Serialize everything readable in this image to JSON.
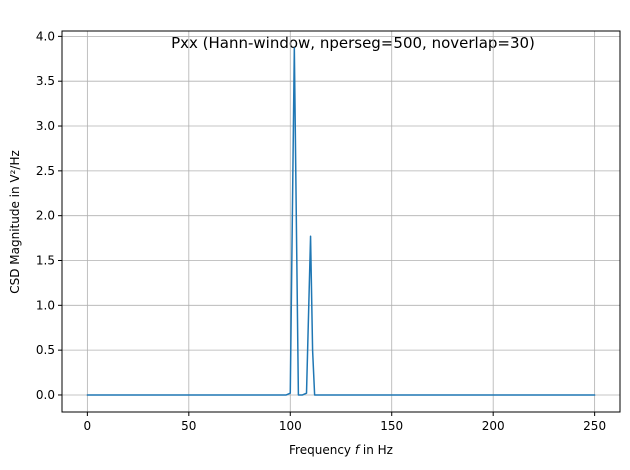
{
  "chart_data": {
    "type": "line",
    "title": "Pxx (Hann-window, nperseg=500, noverlap=30)",
    "xlabel_prefix": "Frequency ",
    "xlabel_var": "f",
    "xlabel_suffix": " in Hz",
    "ylabel": "CSD Magnitude in V²/Hz",
    "xlim": [
      -12.5,
      262.5
    ],
    "ylim": [
      -0.19,
      4.06
    ],
    "xticks": [
      0,
      50,
      100,
      150,
      200,
      250
    ],
    "xtick_labels": [
      "0",
      "50",
      "100",
      "150",
      "200",
      "250"
    ],
    "yticks": [
      0.0,
      0.5,
      1.0,
      1.5,
      2.0,
      2.5,
      3.0,
      3.5,
      4.0
    ],
    "ytick_labels": [
      "0.0",
      "0.5",
      "1.0",
      "1.5",
      "2.0",
      "2.5",
      "3.0",
      "3.5",
      "4.0"
    ],
    "grid": true,
    "series": [
      {
        "color": "#1f77b4",
        "x": [
          0,
          50,
          98,
          100,
          102,
          104,
          106,
          108,
          110,
          111,
          112,
          114,
          150,
          200,
          250
        ],
        "y": [
          0,
          0,
          0,
          0.02,
          3.87,
          0,
          0,
          0.02,
          1.77,
          0.5,
          0,
          0,
          0,
          0,
          0
        ]
      }
    ]
  }
}
